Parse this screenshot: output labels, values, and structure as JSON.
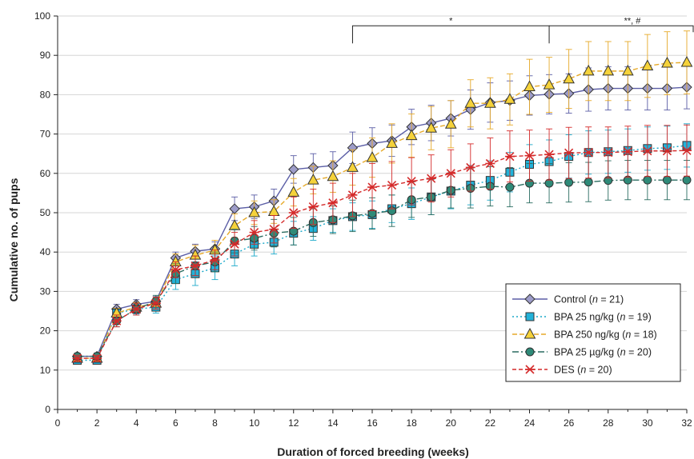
{
  "chart_data": {
    "type": "line",
    "xlabel": "Duration of forced breeding (weeks)",
    "ylabel": "Cumulative no. of pups",
    "xlim": [
      0,
      32
    ],
    "ylim": [
      0,
      100
    ],
    "xticks": [
      0,
      2,
      4,
      6,
      8,
      10,
      12,
      14,
      16,
      18,
      20,
      22,
      24,
      26,
      28,
      30,
      32
    ],
    "yticks": [
      0,
      10,
      20,
      30,
      40,
      50,
      60,
      70,
      80,
      90,
      100
    ],
    "legend_position": "bottom-right",
    "x": [
      1,
      2,
      3,
      4,
      5,
      6,
      7,
      8,
      9,
      10,
      11,
      12,
      13,
      14,
      15,
      16,
      17,
      18,
      19,
      20,
      21,
      22,
      23,
      24,
      25,
      26,
      27,
      28,
      29,
      30,
      31,
      32
    ],
    "series": [
      {
        "name": "Control",
        "legend_label": "Control (",
        "legend_n": "n",
        "legend_suffix": " = 21)",
        "color": "#5b5ea6",
        "fill": "#9d9cc9",
        "marker": "diamond",
        "dash": "solid",
        "values": [
          13.5,
          13.5,
          25.5,
          26.7,
          27.5,
          38.5,
          40.2,
          40.8,
          51,
          51.5,
          53,
          61,
          61.5,
          62,
          66.5,
          67.6,
          68.3,
          71.8,
          72.8,
          74,
          76.2,
          78,
          78.5,
          79.8,
          80.1,
          80.3,
          81.3,
          81.6,
          81.6,
          81.6,
          81.6,
          81.9
        ],
        "errors": [
          0.8,
          0.8,
          1.2,
          1.2,
          1.2,
          1.5,
          1.8,
          1.8,
          3,
          3,
          3,
          3.5,
          3.5,
          3.5,
          4,
          4,
          4,
          4.5,
          4.5,
          4.5,
          5,
          5,
          5,
          5,
          5,
          5,
          5.5,
          5.5,
          5.5,
          5.5,
          5.5,
          5.5
        ]
      },
      {
        "name": "BPA 25 ng/kg",
        "legend_label": "BPA 25 ng/kg (",
        "legend_n": "n",
        "legend_suffix": " = 19)",
        "color": "#1aa8c9",
        "fill": "#22b2d9",
        "marker": "square",
        "dash": "2,3",
        "values": [
          12.5,
          12.5,
          24.5,
          25.5,
          26,
          33,
          34.5,
          36,
          39.5,
          42,
          42.5,
          44.8,
          46,
          48,
          49,
          49.5,
          51,
          52.3,
          54,
          55.5,
          57,
          58.2,
          60.3,
          62.3,
          63,
          64.3,
          65.3,
          65.5,
          65.8,
          66.3,
          66.5,
          67.1
        ],
        "errors": [
          0.5,
          0.5,
          1.2,
          1.2,
          1.5,
          2.5,
          3,
          3,
          3,
          3,
          3,
          3,
          3,
          3,
          3.5,
          3.5,
          3.5,
          4,
          4.5,
          4.5,
          5,
          5,
          5,
          5,
          5.5,
          5.5,
          5.5,
          5.5,
          5.5,
          5.5,
          5.5,
          5.5
        ]
      },
      {
        "name": "BPA 250 ng/kg",
        "legend_label": "BPA 250 ng/kg (",
        "legend_n": "n",
        "legend_suffix": " = 18)",
        "color": "#e6a928",
        "fill": "#f5d23a",
        "marker": "triangle",
        "dash": "6,3",
        "values": [
          13,
          13,
          24.5,
          26,
          27,
          37.5,
          39.2,
          40.5,
          46.7,
          50,
          50.3,
          55.2,
          58.3,
          59.2,
          61.5,
          64,
          67.6,
          69.6,
          71.5,
          72.5,
          77.8,
          77.8,
          78.8,
          82,
          82.5,
          84,
          86,
          86,
          86,
          87.3,
          88,
          88.2
        ],
        "errors": [
          0.8,
          0.8,
          1.2,
          1.2,
          1.5,
          2,
          2.5,
          2.5,
          3,
          3,
          3,
          3.5,
          3.5,
          4,
          4.5,
          5,
          5,
          5.5,
          5.5,
          6,
          6,
          6.5,
          6.5,
          7,
          7,
          7.5,
          7.5,
          7.5,
          7.5,
          8,
          8,
          8
        ]
      },
      {
        "name": "BPA 25 µg/kg",
        "legend_label": "BPA 25 µg/kg (",
        "legend_n": "n",
        "legend_suffix": " = 20)",
        "color": "#2a6c60",
        "fill": "#2e8a78",
        "marker": "circle",
        "dash": "8,3,2,3",
        "values": [
          13.5,
          13.5,
          22.5,
          25.5,
          27.5,
          34.5,
          36.5,
          37.5,
          42.8,
          43.5,
          44.8,
          45.3,
          47.5,
          48.2,
          49.2,
          49.8,
          50.5,
          53.3,
          54,
          55.7,
          56.2,
          56.7,
          56.5,
          57.5,
          57.5,
          57.7,
          57.8,
          58.2,
          58.3,
          58.3,
          58.3,
          58.3
        ],
        "errors": [
          0.8,
          0.8,
          1.5,
          1.5,
          1.5,
          2.5,
          2.5,
          2.5,
          3,
          3,
          3.5,
          3.5,
          3.5,
          3.5,
          4,
          4,
          4,
          4.5,
          4.5,
          4.5,
          5,
          5,
          5,
          5,
          5,
          5,
          5,
          5,
          5,
          5,
          5,
          5
        ]
      },
      {
        "name": "DES",
        "legend_label": "DES (",
        "legend_n": "n",
        "legend_suffix": " = 20)",
        "color": "#d42a2a",
        "fill": "#d42a2a",
        "marker": "star",
        "dash": "5,3",
        "values": [
          13,
          13,
          22.5,
          25.5,
          27,
          35.5,
          36.5,
          38,
          42,
          45,
          45.8,
          50,
          51.5,
          52.5,
          54.5,
          56.5,
          57,
          58,
          58.7,
          60,
          61.5,
          62.5,
          64.3,
          64.5,
          64.8,
          65.2,
          65.3,
          65.3,
          65.5,
          65.7,
          65.7,
          65.8
        ],
        "errors": [
          0.8,
          0.8,
          1.5,
          1.5,
          1.5,
          2,
          2.5,
          2.5,
          3,
          3,
          3.5,
          4,
          4.5,
          5,
          5.5,
          6,
          6,
          6,
          6,
          6,
          6,
          6.5,
          6.5,
          6.5,
          6.5,
          6.5,
          6.5,
          6.5,
          6.5,
          6.5,
          6.5,
          6.5
        ]
      }
    ],
    "significance": [
      {
        "label": "*",
        "x_start": 15,
        "x_end": 25,
        "y": 97.5
      },
      {
        "label": "**, #",
        "x_start": 25,
        "x_end": 32.5,
        "y": 98.5
      }
    ]
  }
}
